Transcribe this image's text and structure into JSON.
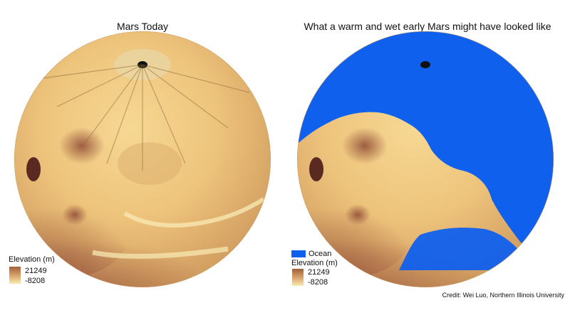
{
  "panels": [
    {
      "title": "Mars Today",
      "legend": {
        "title": "Elevation (m)",
        "max": "21249",
        "min": "-8208"
      }
    },
    {
      "title": "What a warm and wet early Mars might have looked like",
      "legend": {
        "ocean_label": "Ocean",
        "title": "Elevation (m)",
        "max": "21249",
        "min": "-8208"
      }
    }
  ],
  "credit": "Credit: Wei Luo, Northern Illinois University",
  "colors": {
    "terrain_light": "#f0cc82",
    "terrain_dark": "#8e4a35",
    "ocean": "#1060ee",
    "background": "#ffffff"
  }
}
